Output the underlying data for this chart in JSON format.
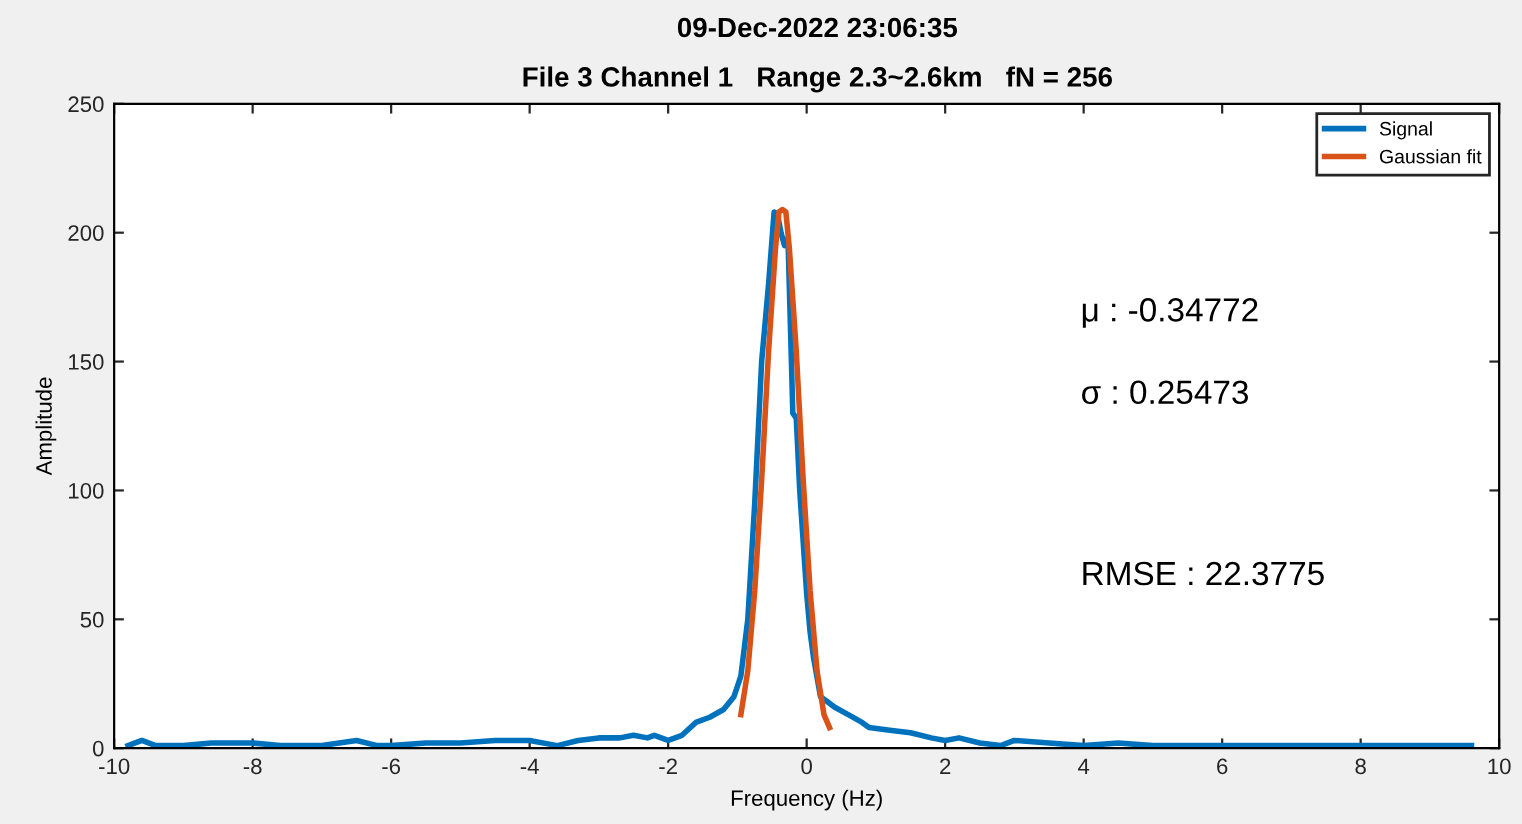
{
  "chart_data": {
    "type": "line",
    "title": "09-Dec-2022 23:06:35",
    "subtitle": "File 3 Channel 1   Range 2.3~2.6km   fN = 256",
    "xlabel": "Frequency (Hz)",
    "ylabel": "Amplitude",
    "series": [
      {
        "name": "Signal",
        "color": "#0072bd",
        "x": [
          -9.8,
          -9.6,
          -9.4,
          -9.0,
          -8.6,
          -8.0,
          -7.6,
          -7.0,
          -6.5,
          -6.2,
          -6.0,
          -5.5,
          -5.0,
          -4.5,
          -4.0,
          -3.6,
          -3.3,
          -3.0,
          -2.7,
          -2.5,
          -2.3,
          -2.2,
          -2.0,
          -1.8,
          -1.6,
          -1.4,
          -1.2,
          -1.05,
          -0.95,
          -0.85,
          -0.75,
          -0.65,
          -0.55,
          -0.47,
          -0.42,
          -0.37,
          -0.32,
          -0.27,
          -0.22,
          -0.2,
          -0.15,
          -0.1,
          -0.05,
          0.0,
          0.05,
          0.1,
          0.2,
          0.3,
          0.4,
          0.6,
          0.8,
          0.9,
          1.2,
          1.5,
          1.8,
          2.0,
          2.2,
          2.5,
          2.8,
          3.0,
          3.5,
          4.0,
          4.5,
          5.0,
          5.5,
          6.0,
          7.0,
          8.0,
          8.5,
          9.0,
          9.6
        ],
        "values": [
          1,
          3,
          1,
          1,
          2,
          2,
          1,
          1,
          3,
          1,
          1,
          2,
          2,
          3,
          3,
          1,
          3,
          4,
          4,
          5,
          4,
          5,
          3,
          5,
          10,
          12,
          15,
          20,
          28,
          50,
          95,
          150,
          180,
          208,
          207,
          200,
          195,
          198,
          150,
          130,
          128,
          100,
          80,
          60,
          45,
          35,
          20,
          18,
          16,
          13,
          10,
          8,
          7,
          6,
          4,
          3,
          4,
          2,
          1,
          3,
          2,
          1,
          2,
          1,
          1,
          1,
          1,
          1,
          1,
          1,
          1
        ]
      },
      {
        "name": "Gaussian fit",
        "color": "#d95319",
        "x": [
          -0.95,
          -0.85,
          -0.75,
          -0.65,
          -0.55,
          -0.45,
          -0.4,
          -0.35,
          -0.3,
          -0.25,
          -0.15,
          -0.05,
          0.05,
          0.15,
          0.25,
          0.33
        ],
        "values": [
          13,
          30,
          61,
          104,
          154,
          194,
          208,
          209,
          208,
          194,
          154,
          104,
          61,
          30,
          13,
          8
        ]
      }
    ],
    "xlim": [
      -10,
      10
    ],
    "xticks": [
      -10,
      -8,
      -6,
      -4,
      -2,
      0,
      2,
      4,
      6,
      8,
      10
    ],
    "ylim": [
      0,
      250
    ],
    "yticks": [
      0,
      50,
      100,
      150,
      200,
      250
    ],
    "grid": false,
    "legend": "top right",
    "annotations": [
      "μ : -0.34772",
      "σ : 0.25473",
      "RMSE : 22.3775"
    ]
  }
}
